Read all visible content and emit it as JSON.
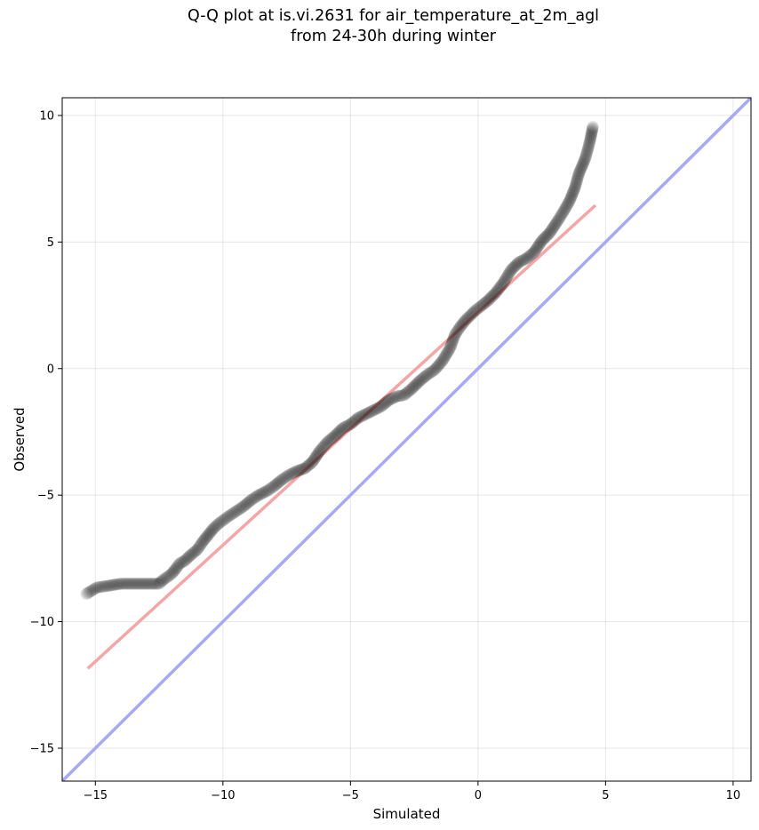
{
  "chart_data": {
    "type": "scatter",
    "title_lines": [
      "Q-Q plot at is.vi.2631 for air_temperature_at_2m_agl",
      "from 24-30h during winter"
    ],
    "xlabel": "Simulated",
    "ylabel": "Observed",
    "xlim": [
      -16.3,
      10.7
    ],
    "ylim": [
      -16.3,
      10.7
    ],
    "x_ticks": [
      -15,
      -10,
      -5,
      0,
      5,
      10
    ],
    "y_ticks": [
      -15,
      -10,
      -5,
      0,
      5,
      10
    ],
    "grid": true,
    "point_color": "#000000",
    "point_opacity": 0.1,
    "quantiles": {
      "x": [
        -15.35,
        -15.1,
        -14.95,
        -14.6,
        -14.0,
        -13.5,
        -12.5,
        -12.35,
        -12.2,
        -12.0,
        -11.8,
        -11.7,
        -11.5,
        -11.3,
        -11.0,
        -10.8,
        -10.6,
        -10.4,
        -10.2,
        -10.0,
        -9.8,
        -9.5,
        -9.2,
        -8.9,
        -8.6,
        -8.3,
        -8.0,
        -7.7,
        -7.4,
        -7.1,
        -6.8,
        -6.5,
        -6.2,
        -5.9,
        -5.6,
        -5.3,
        -5.0,
        -4.7,
        -4.4,
        -4.1,
        -3.8,
        -3.5,
        -3.2,
        -2.9,
        -2.6,
        -2.3,
        -2.0,
        -1.7,
        -1.4,
        -1.1,
        -0.9,
        -0.7,
        -0.5,
        -0.3,
        -0.1,
        0.1,
        0.4,
        0.7,
        1.0,
        1.3,
        1.6,
        1.9,
        2.2,
        2.5,
        2.8,
        3.1,
        3.35,
        3.6,
        3.8,
        3.95,
        4.1,
        4.2,
        4.3,
        4.4,
        4.45,
        4.5
      ],
      "y": [
        -8.9,
        -8.75,
        -8.65,
        -8.6,
        -8.5,
        -8.5,
        -8.5,
        -8.35,
        -8.25,
        -8.1,
        -7.85,
        -7.7,
        -7.6,
        -7.4,
        -7.15,
        -6.85,
        -6.6,
        -6.35,
        -6.15,
        -6.0,
        -5.85,
        -5.65,
        -5.45,
        -5.2,
        -5.0,
        -4.85,
        -4.65,
        -4.4,
        -4.2,
        -4.05,
        -3.95,
        -3.7,
        -3.25,
        -2.9,
        -2.65,
        -2.35,
        -2.2,
        -1.95,
        -1.8,
        -1.65,
        -1.5,
        -1.25,
        -1.1,
        -1.05,
        -0.8,
        -0.5,
        -0.25,
        -0.05,
        0.3,
        0.8,
        1.35,
        1.65,
        1.9,
        2.1,
        2.3,
        2.45,
        2.7,
        3.0,
        3.4,
        3.9,
        4.2,
        4.35,
        4.6,
        5.05,
        5.35,
        5.8,
        6.2,
        6.65,
        7.15,
        7.7,
        8.05,
        8.3,
        8.65,
        9.05,
        9.3,
        9.55
      ]
    },
    "reference_lines": [
      {
        "kind": "fit",
        "color": "#f4a6a6",
        "x": [
          -15.3,
          4.6
        ],
        "y": [
          -11.85,
          6.45
        ]
      },
      {
        "kind": "identity",
        "color": "#a7a9f4",
        "x": [
          -16.3,
          10.7
        ],
        "y": [
          -16.3,
          10.7
        ]
      }
    ]
  }
}
